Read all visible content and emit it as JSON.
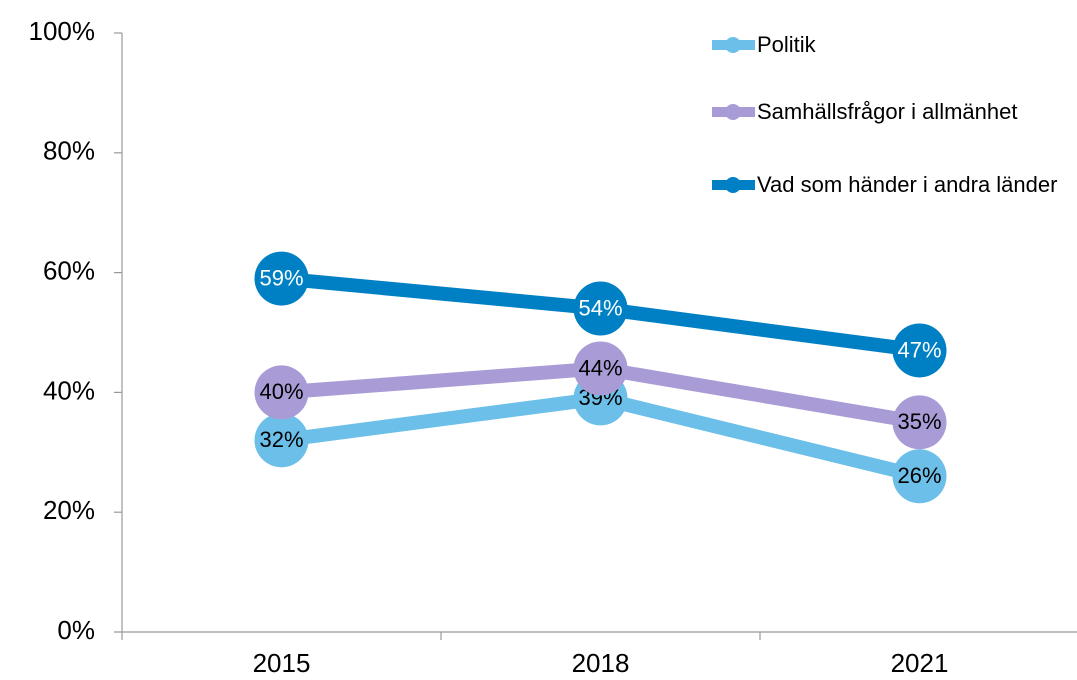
{
  "chart_data": {
    "type": "line",
    "categories": [
      "2015",
      "2018",
      "2021"
    ],
    "series": [
      {
        "name": "Politik",
        "color": "#6bbfe8",
        "label_color": "#000000",
        "values": [
          32,
          39,
          26
        ],
        "value_labels": [
          "32%",
          "39%",
          "26%"
        ]
      },
      {
        "name": "Samhällsfrågor i allmänhet",
        "color": "#a99bd5",
        "label_color": "#000000",
        "values": [
          40,
          44,
          35
        ],
        "value_labels": [
          "40%",
          "44%",
          "35%"
        ]
      },
      {
        "name": "Vad som händer i andra länder",
        "color": "#0080c4",
        "label_color": "#ffffff",
        "values": [
          59,
          54,
          47
        ],
        "value_labels": [
          "59%",
          "54%",
          "47%"
        ]
      }
    ],
    "ylim": [
      0,
      100
    ],
    "yticks": [
      {
        "value": 0,
        "label": "0%"
      },
      {
        "value": 20,
        "label": "20%"
      },
      {
        "value": 40,
        "label": "40%"
      },
      {
        "value": 60,
        "label": "60%"
      },
      {
        "value": 80,
        "label": "80%"
      },
      {
        "value": 100,
        "label": "100%"
      }
    ]
  }
}
